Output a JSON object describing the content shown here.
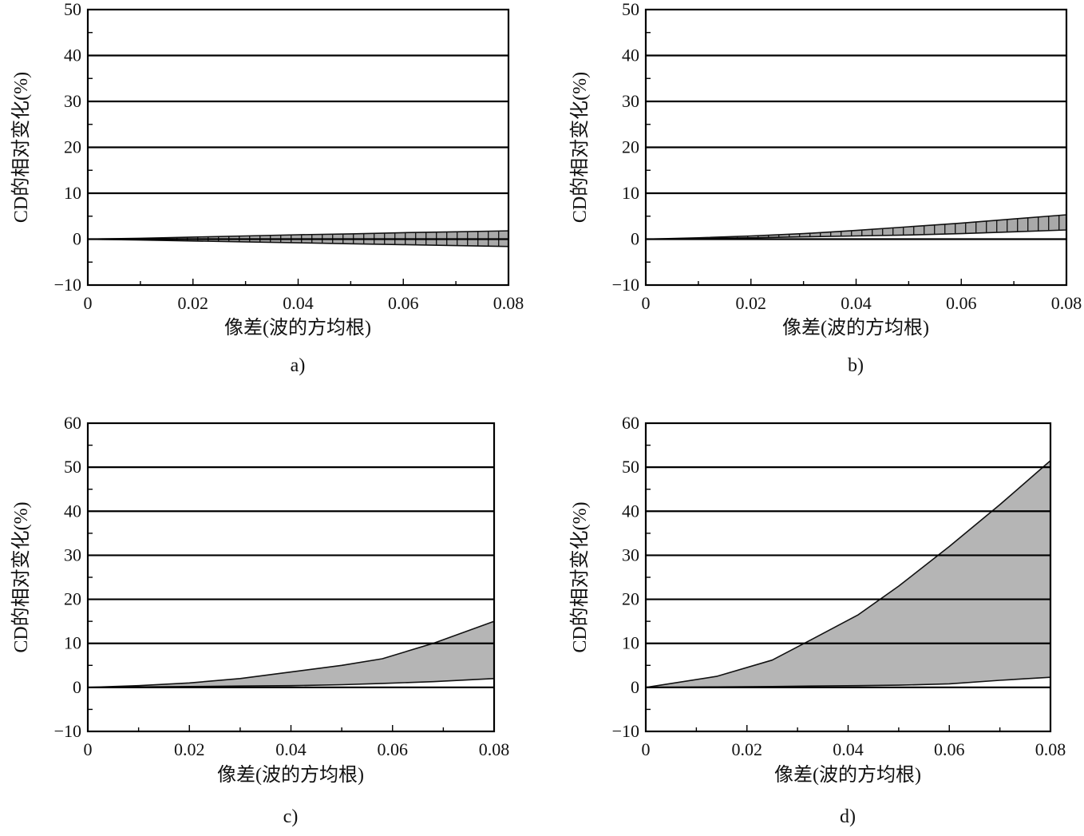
{
  "chart_data": [
    {
      "type": "area",
      "panel_label": "a)",
      "xlabel": "像差(波的方均根)",
      "ylabel": "CD的相对变化(%)",
      "xlim": [
        0,
        0.08
      ],
      "ylim": [
        -10,
        50
      ],
      "x_ticks": [
        "0",
        "0.02",
        "0.04",
        "0.06",
        "0.08"
      ],
      "y_ticks": [
        "50",
        "40",
        "30",
        "20",
        "10",
        "0",
        "−10"
      ],
      "grid": "horizontal",
      "fill": "hatched",
      "band": {
        "x": [
          0,
          0.01,
          0.02,
          0.03,
          0.04,
          0.05,
          0.06,
          0.07,
          0.08
        ],
        "upper": [
          0,
          0.2,
          0.45,
          0.7,
          0.95,
          1.15,
          1.4,
          1.6,
          1.8
        ],
        "lower": [
          0,
          -0.2,
          -0.4,
          -0.6,
          -0.8,
          -1.0,
          -1.2,
          -1.4,
          -1.6
        ]
      }
    },
    {
      "type": "area",
      "panel_label": "b)",
      "xlabel": "像差(波的方均根)",
      "ylabel": "CD的相对变化(%)",
      "xlim": [
        0,
        0.08
      ],
      "ylim": [
        -10,
        50
      ],
      "x_ticks": [
        "0",
        "0.02",
        "0.04",
        "0.06",
        "0.08"
      ],
      "y_ticks": [
        "50",
        "40",
        "30",
        "20",
        "10",
        "0",
        "−10"
      ],
      "grid": "horizontal",
      "fill": "hatched",
      "band": {
        "x": [
          0,
          0.01,
          0.02,
          0.03,
          0.04,
          0.05,
          0.06,
          0.07,
          0.08
        ],
        "upper": [
          0,
          0.3,
          0.7,
          1.2,
          1.9,
          2.7,
          3.5,
          4.4,
          5.3
        ],
        "lower": [
          0,
          0.15,
          0.3,
          0.5,
          0.7,
          0.9,
          1.2,
          1.6,
          2.0
        ]
      }
    },
    {
      "type": "area",
      "panel_label": "c)",
      "xlabel": "像差(波的方均根)",
      "ylabel": "CD的相对变化(%)",
      "xlim": [
        0,
        0.08
      ],
      "ylim": [
        -10,
        60
      ],
      "x_ticks": [
        "0",
        "0.02",
        "0.04",
        "0.06",
        "0.08"
      ],
      "y_ticks": [
        "60",
        "50",
        "40",
        "30",
        "20",
        "10",
        "0",
        "−10"
      ],
      "grid": "horizontal",
      "fill": "solid",
      "band": {
        "x": [
          0,
          0.01,
          0.02,
          0.03,
          0.04,
          0.05,
          0.058,
          0.068,
          0.08
        ],
        "upper": [
          0,
          0.4,
          1.0,
          2.0,
          3.5,
          5.0,
          6.5,
          10.0,
          15.0
        ],
        "lower": [
          0,
          0.1,
          0.2,
          0.3,
          0.4,
          0.6,
          0.9,
          1.3,
          2.0
        ]
      }
    },
    {
      "type": "area",
      "panel_label": "d)",
      "xlabel": "像差(波的方均根)",
      "ylabel": "CD的相对变化(%)",
      "xlim": [
        0,
        0.08
      ],
      "ylim": [
        -10,
        60
      ],
      "x_ticks": [
        "0",
        "0.02",
        "0.04",
        "0.06",
        "0.08"
      ],
      "y_ticks": [
        "60",
        "50",
        "40",
        "30",
        "20",
        "10",
        "0",
        "−10"
      ],
      "grid": "horizontal",
      "fill": "solid",
      "band": {
        "x": [
          0,
          0.014,
          0.025,
          0.033,
          0.042,
          0.05,
          0.06,
          0.07,
          0.08
        ],
        "upper": [
          0,
          2.5,
          6.2,
          11.0,
          16.5,
          23.0,
          32.0,
          41.5,
          51.5
        ],
        "lower": [
          0,
          0.1,
          0.2,
          0.3,
          0.4,
          0.5,
          0.8,
          1.6,
          2.3
        ]
      }
    }
  ]
}
